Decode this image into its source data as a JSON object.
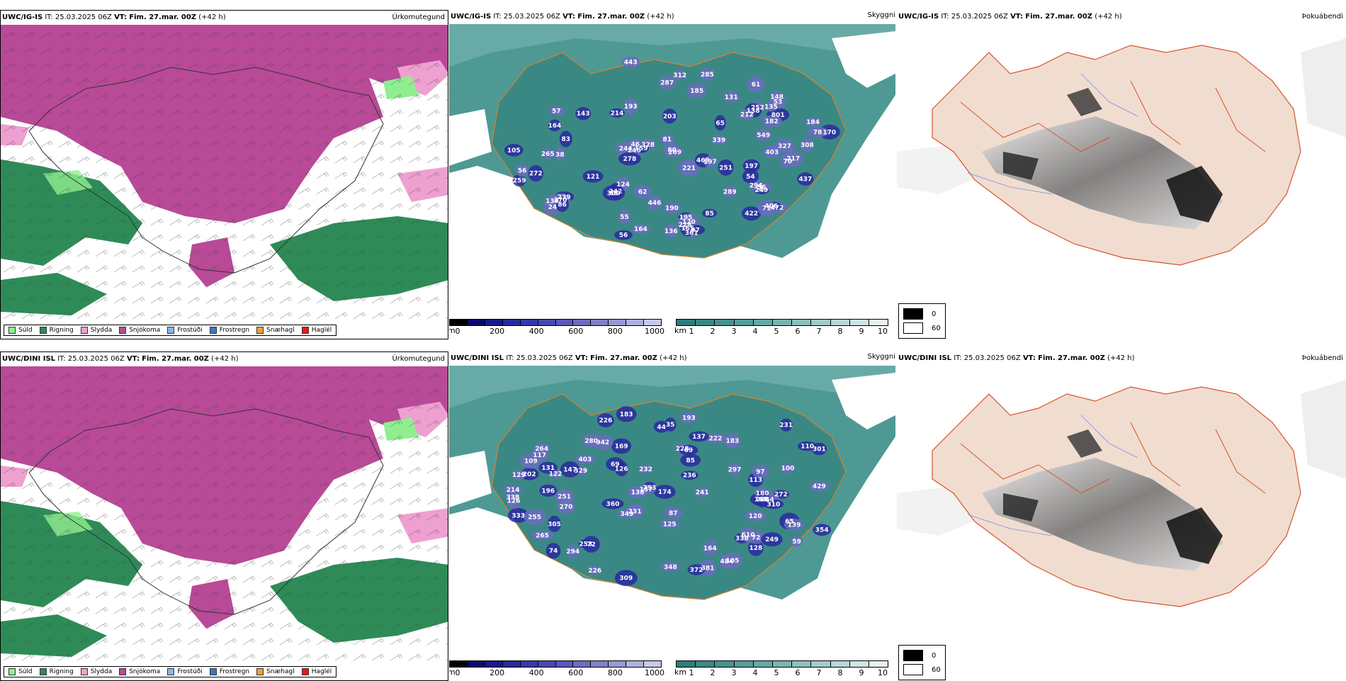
{
  "rows": [
    {
      "model": "UWC/IG-IS",
      "it_label": "IT:",
      "it_value": "25.03.2025 06Z",
      "vt_label": "VT:",
      "vt_value": "Fim. 27.mar. 00Z",
      "lead": "(+42 h)",
      "precip_title": "Úrkomutegund",
      "cloud_title": "Skyggni",
      "fog_title": "Þokuábendi",
      "cloud_labels": [
        "265",
        "244",
        "164",
        "228",
        "221",
        "259",
        "193",
        "195",
        "300",
        "252",
        "312",
        "469",
        "549",
        "131",
        "203",
        "170",
        "328",
        "239",
        "403",
        "327",
        "472",
        "422",
        "361",
        "217",
        "246",
        "124",
        "209",
        "249",
        "272",
        "214",
        "197",
        "143",
        "83",
        "105",
        "138",
        "801",
        "278",
        "270",
        "148",
        "308",
        "85",
        "159",
        "165",
        "139",
        "135",
        "190",
        "437",
        "294",
        "406",
        "446",
        "120",
        "184",
        "71",
        "242",
        "285",
        "443",
        "164",
        "287",
        "251",
        "182",
        "212",
        "66",
        "46",
        "62",
        "57",
        "38",
        "54",
        "65",
        "61",
        "55",
        "56",
        "81",
        "197",
        "339",
        "289",
        "121",
        "53",
        "136",
        "56",
        "97",
        "56",
        "80",
        "70",
        "185",
        "78",
        "24",
        "86"
      ]
    },
    {
      "model": "UWC/DINI ISL",
      "it_label": "IT:",
      "it_value": "25.03.2025 06Z",
      "vt_label": "VT:",
      "vt_value": "Fim. 27.mar. 00Z",
      "lead": "(+42 h)",
      "precip_title": "Úrkomutegund",
      "cloud_title": "Skyggni",
      "fog_title": "Þokuábendi",
      "cloud_labels": [
        "272",
        "226",
        "231",
        "164",
        "251",
        "241",
        "381",
        "196",
        "183",
        "338",
        "270",
        "168",
        "65",
        "360",
        "139",
        "120",
        "202",
        "301",
        "348",
        "222",
        "169",
        "226",
        "231",
        "294",
        "305",
        "309",
        "610",
        "403",
        "232",
        "64",
        "125",
        "122",
        "128",
        "214",
        "310",
        "329",
        "265",
        "372",
        "253",
        "354",
        "484",
        "942",
        "147",
        "180",
        "174",
        "113",
        "193",
        "97",
        "72",
        "109",
        "72",
        "183",
        "333",
        "249",
        "338",
        "293",
        "429",
        "349",
        "297",
        "236",
        "126",
        "280",
        "44",
        "87",
        "85",
        "228",
        "74",
        "138",
        "288",
        "59",
        "137",
        "264",
        "126",
        "69",
        "129",
        "69",
        "131",
        "100",
        "117",
        "105",
        "110",
        "255",
        "35",
        "137"
      ]
    }
  ],
  "precip_legend": [
    {
      "label": "Súld",
      "color": "#90ee90"
    },
    {
      "label": "Rigning",
      "color": "#2e8b57"
    },
    {
      "label": "Slydda",
      "color": "#eea0d0"
    },
    {
      "label": "Snjókoma",
      "color": "#b84a98"
    },
    {
      "label": "Frostúði",
      "color": "#87b8e8"
    },
    {
      "label": "Frostregn",
      "color": "#3a78c8"
    },
    {
      "label": "Snæhagl",
      "color": "#f0a030"
    },
    {
      "label": "Haglél",
      "color": "#e81818"
    }
  ],
  "cloud_base": {
    "unit": "m",
    "ticks": [
      "0",
      "200",
      "400",
      "600",
      "800",
      "1000"
    ],
    "colors": [
      "#000000",
      "#0a0a6a",
      "#1a1a8a",
      "#2a2aa0",
      "#3838a8",
      "#4848b0",
      "#5a5ab8",
      "#6c6cc0",
      "#8080c8",
      "#9898d4",
      "#b0b0e0",
      "#c8c8ea"
    ]
  },
  "visibility": {
    "unit": "km",
    "ticks": [
      "1",
      "2",
      "3",
      "4",
      "5",
      "6",
      "7",
      "8",
      "9",
      "10"
    ],
    "colors": [
      "#2e7d7a",
      "#3a8884",
      "#46938e",
      "#559e99",
      "#66a9a4",
      "#78b4b0",
      "#8cc0bc",
      "#a0ccc8",
      "#b6d8d5",
      "#cde5e3",
      "#e6f2f1"
    ]
  },
  "fog_legend": [
    {
      "value": "0",
      "color": "#000000"
    },
    {
      "value": "60",
      "color": "#ffffff"
    }
  ]
}
